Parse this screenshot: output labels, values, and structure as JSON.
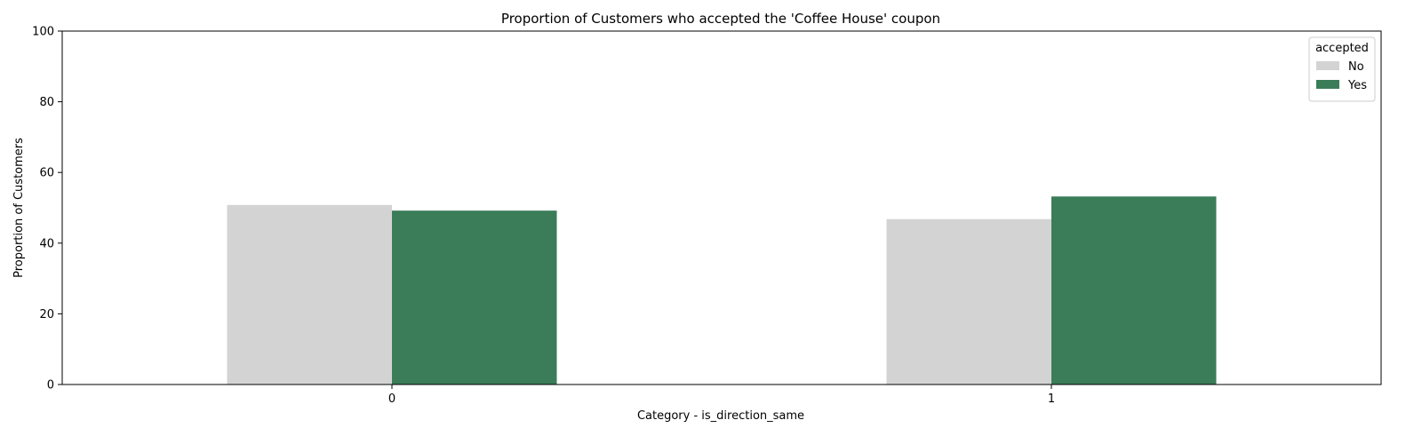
{
  "chart_data": {
    "type": "bar",
    "title": "Proportion of Customers who accepted the 'Coffee House' coupon",
    "xlabel": "Category - is_direction_same",
    "ylabel": "Proportion of Customers",
    "categories": [
      "0",
      "1"
    ],
    "series": [
      {
        "name": "No",
        "values": [
          50.8,
          46.8
        ],
        "color": "#d3d3d3"
      },
      {
        "name": "Yes",
        "values": [
          49.2,
          53.2
        ],
        "color": "#3a7d58"
      }
    ],
    "ylim": [
      0,
      100
    ],
    "yticks": [
      0,
      20,
      40,
      60,
      80,
      100
    ],
    "legend": {
      "title": "accepted",
      "position": "top-right"
    },
    "grid": false
  }
}
